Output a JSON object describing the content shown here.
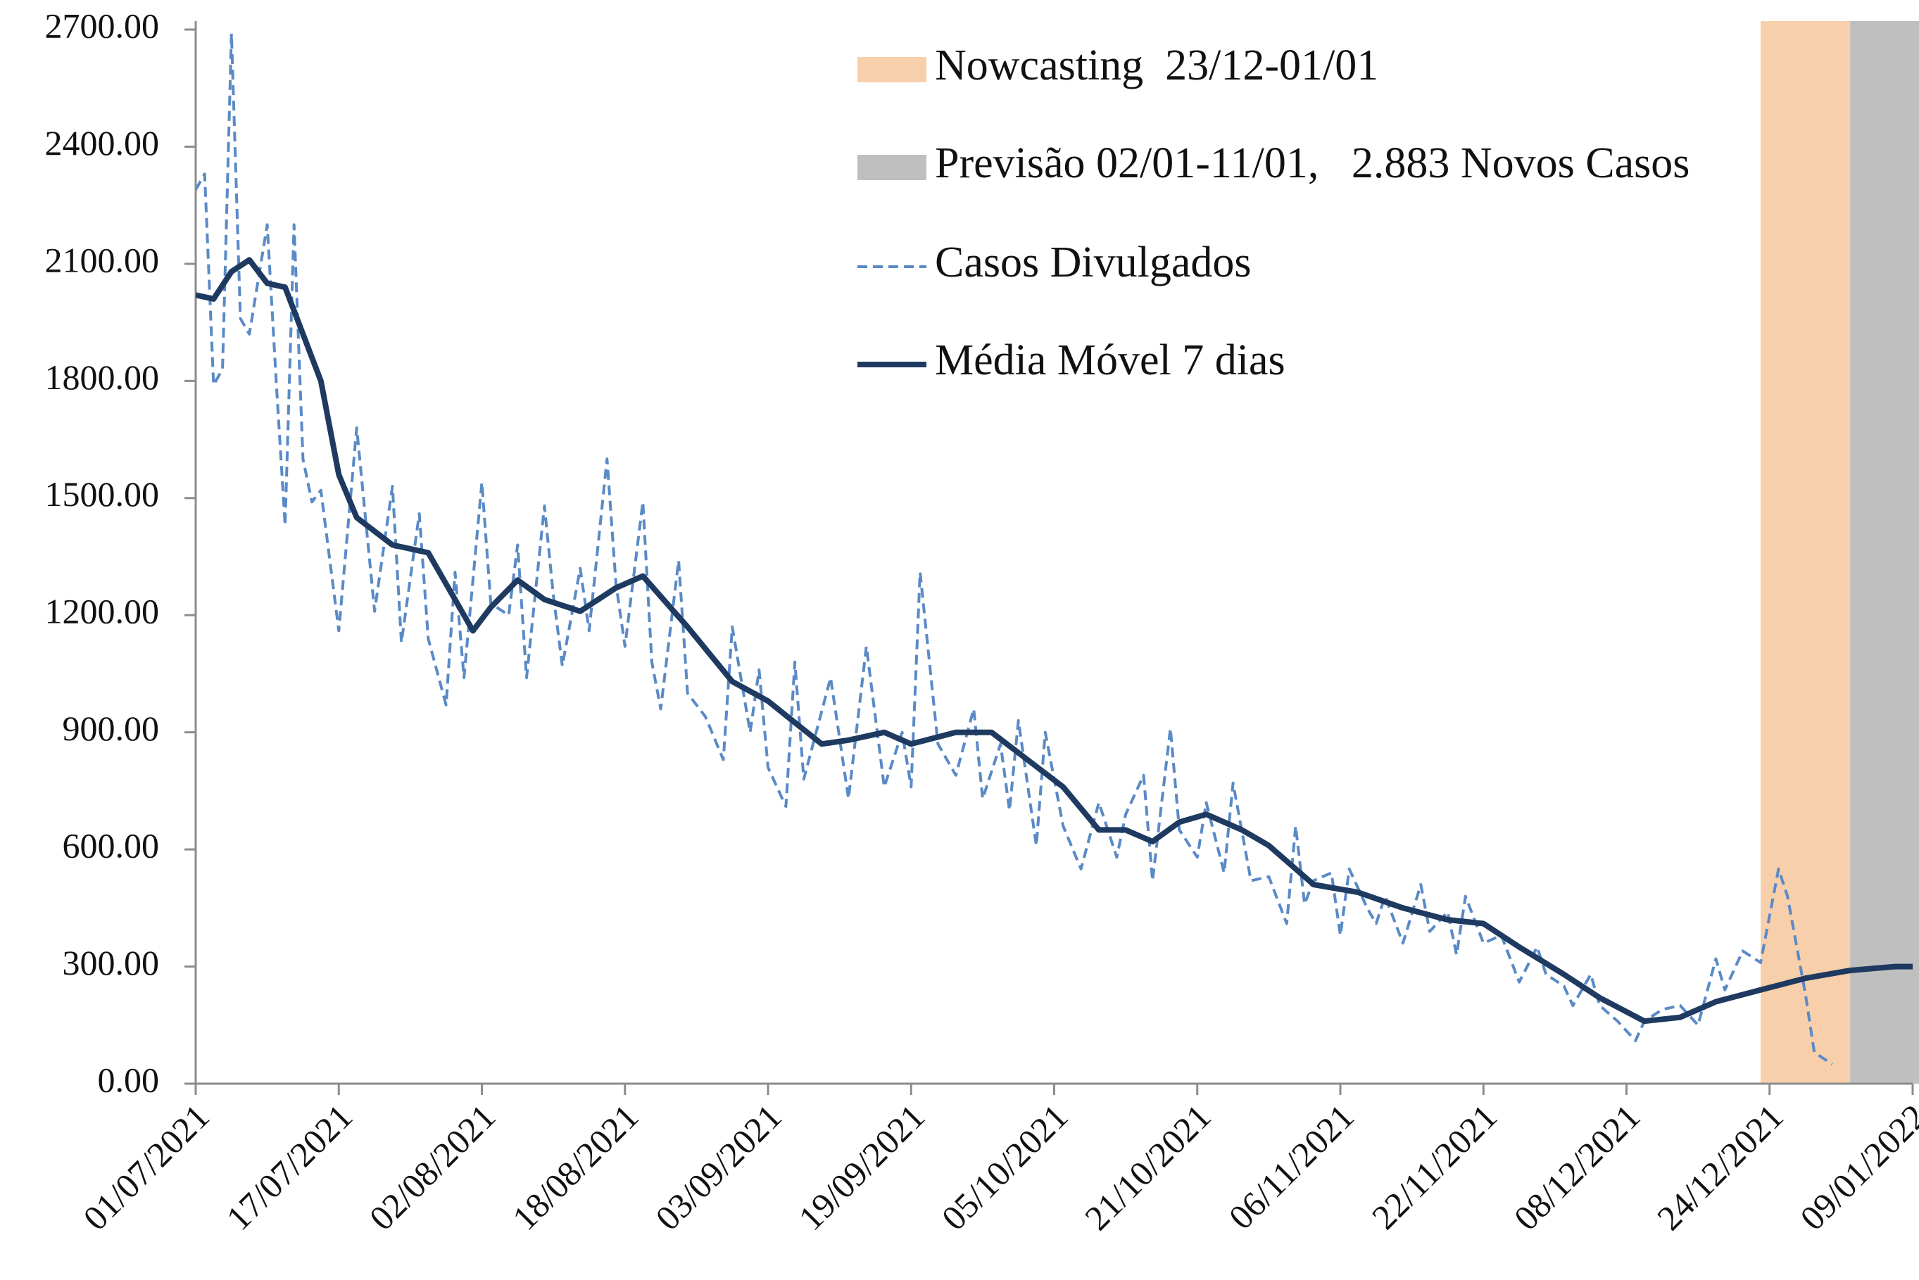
{
  "chart_data": {
    "type": "line",
    "xlim": [
      "01/07/2021",
      "09/01/2022"
    ],
    "xticks": [
      "01/07/2021",
      "17/07/2021",
      "02/08/2021",
      "18/08/2021",
      "03/09/2021",
      "19/09/2021",
      "05/10/2021",
      "21/10/2021",
      "06/11/2021",
      "22/11/2021",
      "08/12/2021",
      "24/12/2021",
      "09/01/2022"
    ],
    "ylim": [
      0,
      2700
    ],
    "yticks": [
      {
        "value": 0,
        "label": "0.00"
      },
      {
        "value": 300,
        "label": "300.00"
      },
      {
        "value": 600,
        "label": "600.00"
      },
      {
        "value": 900,
        "label": "900.00"
      },
      {
        "value": 1200,
        "label": "1200.00"
      },
      {
        "value": 1500,
        "label": "1500.00"
      },
      {
        "value": 1800,
        "label": "1800.00"
      },
      {
        "value": 2100,
        "label": "2100.00"
      },
      {
        "value": 2400,
        "label": "2400.00"
      },
      {
        "value": 2700,
        "label": "2700.00"
      }
    ],
    "grid": false,
    "legend": "top-right",
    "bands": [
      {
        "name": "Nowcasting  23/12-01/01",
        "start": "23/12/2021",
        "end": "01/01/2022",
        "color": "#f8cfab"
      },
      {
        "name": "Previsão 02/01-11/01,   2.883 Novos Casos",
        "start": "02/01/2022",
        "end": "11/01/2022",
        "color": "#bfbfbf"
      }
    ],
    "series": [
      {
        "name": "Casos Divulgados",
        "color": "#5a8ac6",
        "style": "dashed",
        "x": [
          "01/07/2021",
          "02/07/2021",
          "03/07/2021",
          "04/07/2021",
          "05/07/2021",
          "06/07/2021",
          "07/07/2021",
          "09/07/2021",
          "10/07/2021",
          "11/07/2021",
          "12/07/2021",
          "13/07/2021",
          "14/07/2021",
          "15/07/2021",
          "17/07/2021",
          "19/07/2021",
          "21/07/2021",
          "23/07/2021",
          "24/07/2021",
          "26/07/2021",
          "27/07/2021",
          "29/07/2021",
          "30/07/2021",
          "31/07/2021",
          "02/08/2021",
          "03/08/2021",
          "05/08/2021",
          "06/08/2021",
          "07/08/2021",
          "09/08/2021",
          "10/08/2021",
          "11/08/2021",
          "13/08/2021",
          "14/08/2021",
          "16/08/2021",
          "17/08/2021",
          "18/08/2021",
          "20/08/2021",
          "21/08/2021",
          "22/08/2021",
          "24/08/2021",
          "25/08/2021",
          "27/08/2021",
          "29/08/2021",
          "30/08/2021",
          "01/09/2021",
          "02/09/2021",
          "03/09/2021",
          "05/09/2021",
          "06/09/2021",
          "07/09/2021",
          "10/09/2021",
          "12/09/2021",
          "14/09/2021",
          "16/09/2021",
          "18/09/2021",
          "19/09/2021",
          "20/09/2021",
          "22/09/2021",
          "24/09/2021",
          "26/09/2021",
          "27/09/2021",
          "29/09/2021",
          "30/09/2021",
          "01/10/2021",
          "03/10/2021",
          "04/10/2021",
          "06/10/2021",
          "08/10/2021",
          "10/10/2021",
          "12/10/2021",
          "13/10/2021",
          "15/10/2021",
          "16/10/2021",
          "18/10/2021",
          "19/10/2021",
          "21/10/2021",
          "22/10/2021",
          "24/10/2021",
          "25/10/2021",
          "27/10/2021",
          "29/10/2021",
          "31/10/2021",
          "01/11/2021",
          "02/11/2021",
          "03/11/2021",
          "05/11/2021",
          "06/11/2021",
          "07/11/2021",
          "09/11/2021",
          "10/11/2021",
          "11/11/2021",
          "13/11/2021",
          "15/11/2021",
          "16/11/2021",
          "18/11/2021",
          "19/11/2021",
          "20/11/2021",
          "22/11/2021",
          "24/11/2021",
          "26/11/2021",
          "28/11/2021",
          "29/11/2021",
          "01/12/2021",
          "02/12/2021",
          "04/12/2021",
          "05/12/2021",
          "07/12/2021",
          "09/12/2021",
          "10/12/2021",
          "12/12/2021",
          "14/12/2021",
          "16/12/2021",
          "18/12/2021",
          "19/12/2021",
          "21/12/2021",
          "23/12/2021",
          "25/12/2021",
          "26/12/2021",
          "28/12/2021",
          "29/12/2021",
          "31/12/2021"
        ],
        "values": [
          2290,
          2330,
          1790,
          1830,
          2690,
          1960,
          1920,
          2200,
          1800,
          1430,
          2200,
          1600,
          1490,
          1520,
          1160,
          1680,
          1210,
          1530,
          1130,
          1460,
          1140,
          970,
          1310,
          1040,
          1540,
          1230,
          1200,
          1380,
          1040,
          1480,
          1250,
          1070,
          1320,
          1160,
          1600,
          1280,
          1120,
          1490,
          1080,
          960,
          1340,
          1000,
          940,
          830,
          1170,
          900,
          1060,
          810,
          710,
          1080,
          780,
          1040,
          730,
          1120,
          760,
          900,
          760,
          1310,
          870,
          790,
          960,
          730,
          870,
          700,
          930,
          610,
          900,
          660,
          550,
          720,
          580,
          690,
          790,
          520,
          910,
          650,
          580,
          720,
          540,
          770,
          520,
          530,
          410,
          660,
          460,
          520,
          540,
          380,
          550,
          450,
          410,
          480,
          360,
          510,
          390,
          440,
          330,
          480,
          360,
          380,
          260,
          350,
          280,
          250,
          200,
          280,
          200,
          160,
          110,
          160,
          190,
          200,
          150,
          320,
          240,
          340,
          310,
          550,
          480,
          230,
          80,
          50
        ]
      },
      {
        "name": "Média Móvel 7 dias",
        "color": "#1f3a60",
        "style": "solid",
        "x": [
          "01/07/2021",
          "03/07/2021",
          "05/07/2021",
          "07/07/2021",
          "09/07/2021",
          "11/07/2021",
          "15/07/2021",
          "17/07/2021",
          "19/07/2021",
          "23/07/2021",
          "27/07/2021",
          "01/08/2021",
          "03/08/2021",
          "06/08/2021",
          "09/08/2021",
          "13/08/2021",
          "17/08/2021",
          "20/08/2021",
          "25/08/2021",
          "30/08/2021",
          "03/09/2021",
          "09/09/2021",
          "12/09/2021",
          "16/09/2021",
          "19/09/2021",
          "24/09/2021",
          "28/09/2021",
          "02/10/2021",
          "06/10/2021",
          "10/10/2021",
          "13/10/2021",
          "16/10/2021",
          "19/10/2021",
          "22/10/2021",
          "26/10/2021",
          "29/10/2021",
          "03/11/2021",
          "08/11/2021",
          "13/11/2021",
          "18/11/2021",
          "22/11/2021",
          "26/11/2021",
          "01/12/2021",
          "05/12/2021",
          "10/12/2021",
          "14/12/2021",
          "18/12/2021",
          "23/12/2021",
          "28/12/2021",
          "02/01/2022",
          "07/01/2022",
          "09/01/2022"
        ],
        "values": [
          2020,
          2010,
          2080,
          2110,
          2050,
          2040,
          1800,
          1560,
          1450,
          1380,
          1360,
          1160,
          1220,
          1290,
          1240,
          1210,
          1270,
          1300,
          1170,
          1030,
          980,
          870,
          880,
          900,
          870,
          900,
          900,
          830,
          760,
          650,
          650,
          620,
          670,
          690,
          650,
          610,
          510,
          490,
          450,
          420,
          410,
          350,
          280,
          220,
          160,
          170,
          210,
          240,
          270,
          290,
          300,
          300
        ]
      }
    ]
  }
}
